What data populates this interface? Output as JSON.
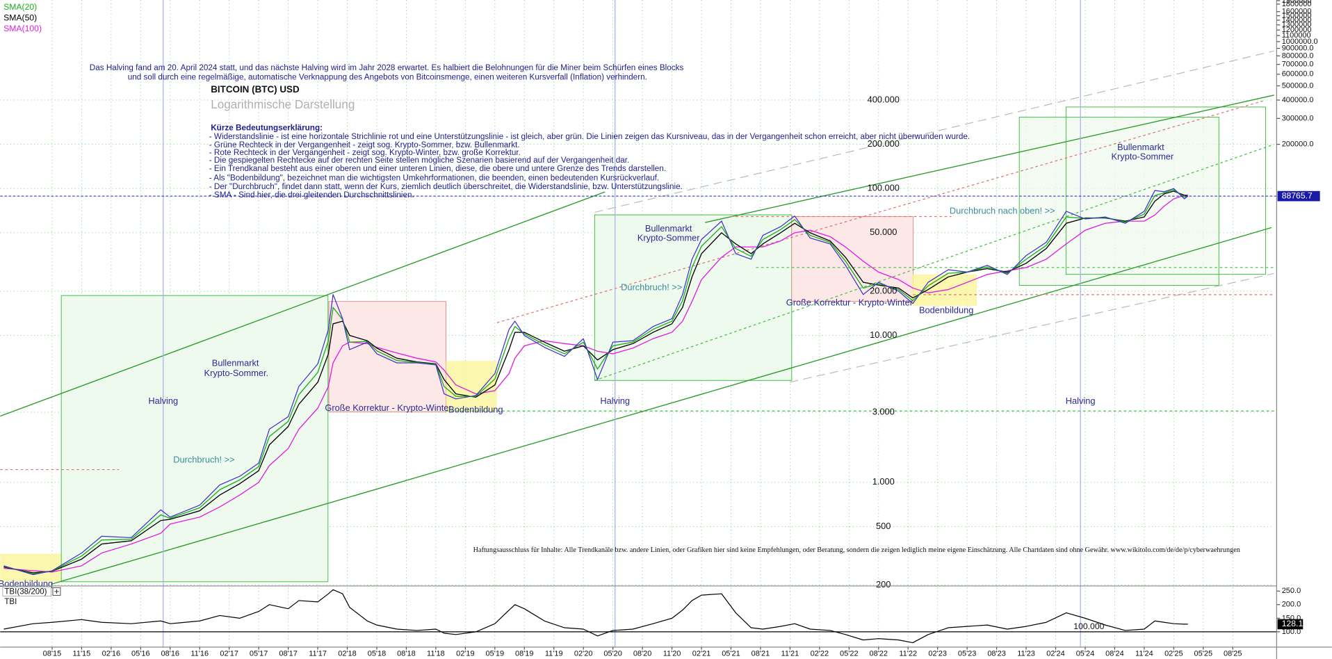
{
  "chart_data": {
    "type": "line",
    "title": "BITCOIN (BTC) USD",
    "subtitle": "Logarithmische Darstellung",
    "log_scale": true,
    "grid": true,
    "xlim": [
      2015.14,
      2025.93
    ],
    "xticks": [
      {
        "value": 2015.58,
        "label": "08'15"
      },
      {
        "value": 2015.83,
        "label": "11'15"
      },
      {
        "value": 2016.08,
        "label": "02'16"
      },
      {
        "value": 2016.33,
        "label": "05'16"
      },
      {
        "value": 2016.58,
        "label": "08'16"
      },
      {
        "value": 2016.83,
        "label": "11'16"
      },
      {
        "value": 2017.08,
        "label": "02'17"
      },
      {
        "value": 2017.33,
        "label": "05'17"
      },
      {
        "value": 2017.58,
        "label": "08'17"
      },
      {
        "value": 2017.83,
        "label": "11'17"
      },
      {
        "value": 2018.08,
        "label": "02'18"
      },
      {
        "value": 2018.33,
        "label": "05'18"
      },
      {
        "value": 2018.58,
        "label": "08'18"
      },
      {
        "value": 2018.83,
        "label": "11'18"
      },
      {
        "value": 2019.08,
        "label": "02'19"
      },
      {
        "value": 2019.33,
        "label": "05'19"
      },
      {
        "value": 2019.58,
        "label": "08'19"
      },
      {
        "value": 2019.83,
        "label": "11'19"
      },
      {
        "value": 2020.08,
        "label": "02'20"
      },
      {
        "value": 2020.33,
        "label": "05'20"
      },
      {
        "value": 2020.58,
        "label": "08'20"
      },
      {
        "value": 2020.83,
        "label": "11'20"
      },
      {
        "value": 2021.08,
        "label": "02'21"
      },
      {
        "value": 2021.33,
        "label": "05'21"
      },
      {
        "value": 2021.58,
        "label": "08'21"
      },
      {
        "value": 2021.83,
        "label": "11'21"
      },
      {
        "value": 2022.08,
        "label": "02'22"
      },
      {
        "value": 2022.33,
        "label": "05'22"
      },
      {
        "value": 2022.58,
        "label": "08'22"
      },
      {
        "value": 2022.83,
        "label": "11'22"
      },
      {
        "value": 2023.08,
        "label": "02'23"
      },
      {
        "value": 2023.33,
        "label": "05'23"
      },
      {
        "value": 2023.58,
        "label": "08'23"
      },
      {
        "value": 2023.83,
        "label": "11'23"
      },
      {
        "value": 2024.08,
        "label": "02'24"
      },
      {
        "value": 2024.33,
        "label": "05'24"
      },
      {
        "value": 2024.58,
        "label": "08'24"
      },
      {
        "value": 2024.83,
        "label": "11'24"
      },
      {
        "value": 2025.08,
        "label": "02'25"
      },
      {
        "value": 2025.33,
        "label": "05'25"
      },
      {
        "value": 2025.58,
        "label": "08'25"
      }
    ],
    "ylim": [
      197,
      1920000
    ],
    "yticks": [
      {
        "value": 400000,
        "label": "400.000"
      },
      {
        "value": 200000,
        "label": "200.000"
      },
      {
        "value": 100000,
        "label": "100.000"
      },
      {
        "value": 50000,
        "label": "50.000"
      },
      {
        "value": 20000,
        "label": "20.000"
      },
      {
        "value": 10000,
        "label": "10.000"
      },
      {
        "value": 3000,
        "label": "3.000"
      },
      {
        "value": 1000,
        "label": "1.000"
      },
      500,
      200
    ],
    "y2lim": [
      197,
      1920000
    ],
    "y2ticks": [
      1900000,
      1800000,
      1600000,
      1500000,
      1400000,
      1300000,
      1200000,
      1100000,
      {
        "value": 1000000,
        "label": "1000000.0"
      },
      {
        "value": 900000,
        "label": "900000.0"
      },
      {
        "value": 800000,
        "label": "800000.0"
      },
      {
        "value": 700000,
        "label": "700000.0"
      },
      {
        "value": 600000,
        "label": "600000.0"
      },
      {
        "value": 500000,
        "label": "500000.0"
      },
      {
        "value": 400000,
        "label": "400000.0"
      },
      {
        "value": 300000,
        "label": "300000.0"
      },
      {
        "value": 200000,
        "label": "200000.0"
      }
    ],
    "x": [
      2015.17,
      2015.42,
      2015.58,
      2015.83,
      2016.0,
      2016.25,
      2016.5,
      2016.58,
      2016.83,
      2017.0,
      2017.17,
      2017.33,
      2017.42,
      2017.58,
      2017.67,
      2017.83,
      2017.92,
      2017.96,
      2018.04,
      2018.1,
      2018.25,
      2018.33,
      2018.5,
      2018.67,
      2018.83,
      2018.9,
      2019.0,
      2019.17,
      2019.33,
      2019.45,
      2019.5,
      2019.58,
      2019.75,
      2019.92,
      2020.08,
      2020.2,
      2020.33,
      2020.5,
      2020.67,
      2020.83,
      2020.92,
      2021.0,
      2021.08,
      2021.25,
      2021.37,
      2021.5,
      2021.6,
      2021.75,
      2021.87,
      2022.0,
      2022.17,
      2022.3,
      2022.45,
      2022.58,
      2022.75,
      2022.87,
      2023.0,
      2023.17,
      2023.33,
      2023.5,
      2023.67,
      2023.83,
      2024.0,
      2024.17,
      2024.33,
      2024.5,
      2024.67,
      2024.83,
      2024.92,
      2025.0,
      2025.08,
      2025.17,
      2025.2
    ],
    "series": [
      {
        "name": "BTC",
        "color": "#3b2fc9",
        "values": [
          270,
          235,
          250,
          330,
          430,
          420,
          650,
          580,
          700,
          960,
          1100,
          1350,
          2300,
          2800,
          4500,
          6400,
          11000,
          19000,
          13000,
          8000,
          9000,
          7500,
          6500,
          6500,
          6300,
          4000,
          3700,
          3900,
          5500,
          11000,
          12500,
          10000,
          8300,
          7200,
          9500,
          5000,
          9000,
          9200,
          11500,
          13000,
          19000,
          33000,
          45000,
          60000,
          36000,
          33000,
          48000,
          55000,
          65000,
          46000,
          42000,
          30000,
          19000,
          23000,
          20000,
          16500,
          23000,
          28000,
          27000,
          30000,
          26000,
          35000,
          43000,
          70000,
          62000,
          64000,
          58000,
          70000,
          97000,
          95000,
          100000,
          85000,
          88765.7
        ]
      },
      {
        "name": "SMA(20)",
        "color": "#18b018",
        "values": [
          268,
          238,
          249,
          315,
          405,
          410,
          600,
          570,
          670,
          890,
          1040,
          1280,
          2050,
          2600,
          3950,
          5600,
          9200,
          15500,
          12800,
          9000,
          9100,
          7850,
          6750,
          6550,
          6350,
          4500,
          3850,
          3850,
          5050,
          9500,
          11500,
          10250,
          8650,
          7500,
          9000,
          5900,
          8500,
          9000,
          11000,
          12500,
          17250,
          29000,
          40500,
          55000,
          39000,
          34500,
          45000,
          52500,
          61500,
          48000,
          43000,
          32000,
          21000,
          22500,
          20500,
          17250,
          21750,
          26500,
          27000,
          29250,
          26500,
          33000,
          41000,
          64000,
          62500,
          63500,
          59000,
          67000,
          89500,
          93500,
          98000,
          87500,
          88900
        ]
      },
      {
        "name": "SMA(50)",
        "color": "#000000",
        "values": [
          265,
          242,
          248,
          300,
          380,
          400,
          550,
          560,
          640,
          820,
          980,
          1200,
          1800,
          2400,
          3400,
          4800,
          7500,
          12000,
          12500,
          10000,
          9200,
          8200,
          7000,
          6600,
          6400,
          5000,
          4000,
          3800,
          4600,
          8000,
          10500,
          10500,
          9000,
          7800,
          8500,
          6800,
          8000,
          8800,
          10500,
          12000,
          15500,
          25000,
          36000,
          50000,
          42000,
          36000,
          42000,
          50000,
          58000,
          50000,
          44000,
          34000,
          23000,
          22000,
          21000,
          18000,
          20500,
          25000,
          27000,
          28500,
          27000,
          31000,
          39000,
          58000,
          63000,
          63000,
          60000,
          64000,
          82000,
          92000,
          96000,
          90000,
          89000
        ]
      },
      {
        "name": "SMA(100)",
        "color": "#e020e0",
        "values": [
          260,
          250,
          245,
          270,
          330,
          380,
          450,
          520,
          580,
          680,
          820,
          1000,
          1300,
          1700,
          2300,
          3200,
          4500,
          6500,
          8500,
          9000,
          8800,
          8300,
          7600,
          7000,
          6600,
          5800,
          4600,
          4000,
          4200,
          5500,
          7000,
          8500,
          9200,
          8800,
          8500,
          7800,
          7500,
          8200,
          9500,
          10500,
          12500,
          17000,
          24000,
          34000,
          40000,
          40000,
          40000,
          44000,
          50000,
          52000,
          47000,
          40000,
          32000,
          27000,
          24000,
          21000,
          19500,
          20500,
          23000,
          26000,
          27500,
          29000,
          33000,
          42000,
          52000,
          58000,
          60000,
          60000,
          66000,
          76000,
          85000,
          90000,
          90500
        ]
      }
    ],
    "tbi": {
      "name": "TBI(38/200)",
      "label": "TBI",
      "color": "#000000",
      "ylim": [
        43.75,
        268.75
      ],
      "yticks": [
        {
          "value": 250,
          "label": "250.0"
        },
        {
          "value": 200,
          "label": "200.0"
        },
        {
          "value": 150,
          "label": "150.0"
        },
        {
          "value": 100,
          "label": "100.0"
        }
      ],
      "level": {
        "value": 100,
        "label": "100.000"
      },
      "values": [
        110,
        130,
        135,
        145,
        135,
        130,
        140,
        130,
        140,
        160,
        150,
        175,
        200,
        185,
        215,
        210,
        240,
        255,
        240,
        190,
        140,
        125,
        110,
        105,
        110,
        95,
        90,
        100,
        130,
        180,
        200,
        185,
        140,
        115,
        110,
        85,
        105,
        110,
        130,
        150,
        180,
        215,
        235,
        240,
        170,
        115,
        110,
        120,
        130,
        110,
        105,
        90,
        70,
        75,
        70,
        60,
        90,
        115,
        120,
        125,
        110,
        120,
        135,
        170,
        150,
        125,
        105,
        110,
        140,
        135,
        130,
        128,
        128.1
      ]
    },
    "annotations": [
      "Das Halving fand am 20. April 2024 statt, und das nächste Halving wird im Jahr 2028 erwartet. Es halbiert die Belohnungen für die Miner beim Schürfen eines Blocks",
      "und soll durch eine regelmäßige, automatische Verknappung des Angebots von Bitcoinsmenge, einen weiteren Kursverfall (Inflation) verhindern.",
      "Kürze Bedeutungserklärung:",
      "- Widerstandslinie - ist eine horizontale Strichlinie rot und eine Unterstützungslinie - ist gleich, aber grün. Die Linien zeigen das Kursniveau, das in der Vergangenheit schon erreicht, aber nicht überwunden wurde.",
      "- Grüne Rechteck in der Vergangenheit - zeigt sog. Krypto-Sommer, bzw. Bullenmarkt.",
      "- Rote Rechteck in der Vergangenheit - zeigt sog. Krypto-Winter, bzw. große Korrektur.",
      "- Die gespiegelten Rechtecke auf der rechten Seite stellen mögliche Szenarien basierend auf der Vergangenheit dar.",
      "- Ein Trendkanal besteht aus einer oberen und einer unteren Linien, diese, die obere und untere Grenze des Trends darstellen.",
      "- Als \"Bodenbildung\", bezeichnet man die wichtigsten Umkehrformationen, die beenden, einen bedeutenden Kursrückverlauf.",
      "- Der \"Durchbruch\", findet dann statt, wenn der Kurs, ziemlich deutlich überschreitet, die Widerstandslinie, bzw. Unterstützungslinie.",
      "- SMA - Sind hier, die drei gleitenden Durchschnittslinien.",
      "Halving",
      "Halving",
      "Halving",
      "Bullenmarkt",
      "Krypto-Sommer.",
      "Durchbruch! >>",
      "Große Korrektur - Krypto-Winter",
      "Bodenbildung",
      "Bullenmarkt",
      "Krypto-Sommer",
      "Durchbruch! >>",
      "Große Korrektur - Krypto-Winter",
      "Bodenbildung",
      "Durchbruch nach oben! >>",
      "Bullenmarkt",
      "Krypto-Sommer",
      "Bodenbildung",
      "Haftungsausschluss für Inhalte: Alle Trendkanäle bzw. andere Linien, oder Grafiken hier sind keine Empfehlungen, oder Beratung, sondern die zeigen lediglich meine eigene Einschätzung. Alle Chartdaten sind ohne Gewähr.  www.wikitolo.com/de/de/p/cyberwaehrungen"
    ]
  }
}
